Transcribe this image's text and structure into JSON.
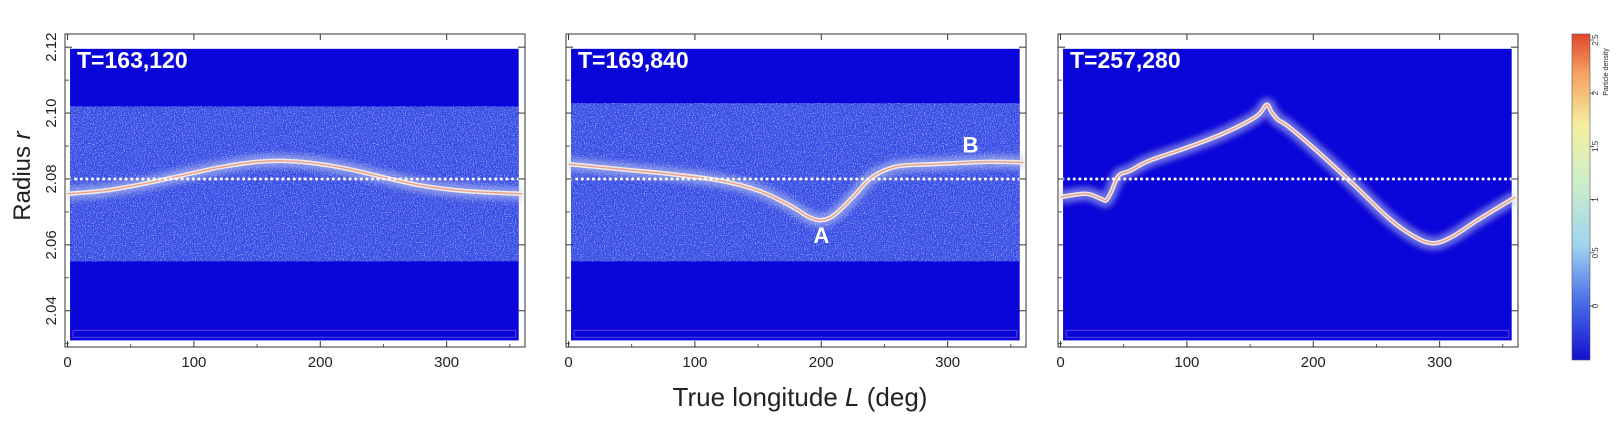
{
  "figure": {
    "ylabel": "Radius",
    "ylabel_var": "r",
    "xlabel": "True longitude",
    "xlabel_var": "L",
    "xlabel_unit": "(deg)",
    "colorbar_label": "Particle density",
    "colorbar_ticks": [
      "0",
      "0.5",
      "1",
      "1.5",
      "2",
      "2.5"
    ],
    "colors": {
      "background": "#0a05d8",
      "noise": "#8fa9ee",
      "band_core": "#f2efe8",
      "peak": "#e85a3a",
      "reference_line": "#ffffff"
    }
  },
  "chart_data": [
    {
      "type": "heatmap",
      "panel_label": "T=163,120",
      "xlim": [
        -2,
        362
      ],
      "ylim": [
        2.029,
        2.124
      ],
      "xticks": [
        "0",
        "100",
        "200",
        "300"
      ],
      "yticks": [
        "2.04",
        "2.06",
        "2.08",
        "2.10",
        "2.12"
      ],
      "reference_line_r": 2.08,
      "scatter_band_r": [
        2.055,
        2.102
      ],
      "ring_curve": {
        "x": [
          0,
          30,
          60,
          90,
          120,
          150,
          170,
          190,
          220,
          250,
          280,
          310,
          340,
          360
        ],
        "y": [
          2.0755,
          2.0765,
          2.0785,
          2.081,
          2.0835,
          2.0852,
          2.0855,
          2.085,
          2.0832,
          2.0805,
          2.078,
          2.0765,
          2.0758,
          2.0755
        ]
      },
      "annotations": []
    },
    {
      "type": "heatmap",
      "panel_label": "T=169,840",
      "xlim": [
        -2,
        362
      ],
      "ylim": [
        2.029,
        2.124
      ],
      "xticks": [
        "0",
        "100",
        "200",
        "300"
      ],
      "yticks": [
        "2.04",
        "2.06",
        "2.08",
        "2.10",
        "2.12"
      ],
      "reference_line_r": 2.08,
      "scatter_band_r": [
        2.055,
        2.103
      ],
      "ring_curve": {
        "x": [
          0,
          40,
          80,
          120,
          150,
          175,
          190,
          200,
          210,
          225,
          240,
          260,
          290,
          330,
          360
        ],
        "y": [
          2.0845,
          2.083,
          2.0815,
          2.0795,
          2.0765,
          2.072,
          2.0685,
          2.0675,
          2.069,
          2.0745,
          2.0805,
          2.0838,
          2.0845,
          2.0852,
          2.085
        ]
      },
      "annotations": [
        {
          "label": "A",
          "x": 200,
          "y": 2.063
        },
        {
          "label": "B",
          "x": 318,
          "y": 2.0905
        }
      ]
    },
    {
      "type": "heatmap",
      "panel_label": "T=257,280",
      "xlim": [
        -2,
        362
      ],
      "ylim": [
        2.029,
        2.124
      ],
      "xticks": [
        "0",
        "100",
        "200",
        "300"
      ],
      "yticks": [
        "2.04",
        "2.06",
        "2.08",
        "2.10",
        "2.12"
      ],
      "reference_line_r": 2.08,
      "scatter_band_r": null,
      "ring_curve": {
        "x": [
          0,
          20,
          32,
          36,
          40,
          46,
          55,
          70,
          100,
          130,
          155,
          163,
          167,
          172,
          180,
          200,
          230,
          260,
          280,
          295,
          310,
          330,
          360
        ],
        "y": [
          2.0745,
          2.0755,
          2.074,
          2.0735,
          2.076,
          2.081,
          2.0825,
          2.0855,
          2.0895,
          2.094,
          2.099,
          2.1025,
          2.1003,
          2.098,
          2.096,
          2.0895,
          2.079,
          2.068,
          2.0625,
          2.0605,
          2.0625,
          2.0675,
          2.0745
        ]
      },
      "annotations": []
    }
  ]
}
